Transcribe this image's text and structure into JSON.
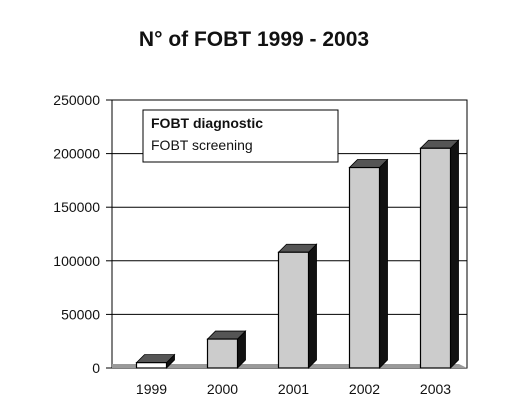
{
  "chart_data": {
    "type": "bar",
    "title": "N° of FOBT 1999 - 2003",
    "categories": [
      "1999",
      "2000",
      "2001",
      "2002",
      "2003"
    ],
    "series": [
      {
        "name": "FOBT screening",
        "values": [
          5000,
          27000,
          108000,
          187000,
          205000
        ]
      }
    ],
    "legend_entries": [
      "FOBT diagnostic",
      "FOBT screening"
    ],
    "legend_position": "top-left",
    "ylim": [
      0,
      250000
    ],
    "yticks": [
      "0",
      "50000",
      "100000",
      "150000",
      "200000",
      "250000"
    ],
    "grid": true,
    "colors": {
      "bar_face": "#cccccc",
      "bar_top": "#555555",
      "bar_side": "#111111",
      "first_bar_face": "#ffffff",
      "plot_background": "#ffffff",
      "grid": "#000000",
      "axis": "#000000",
      "floor": "#9a9a9a"
    }
  }
}
